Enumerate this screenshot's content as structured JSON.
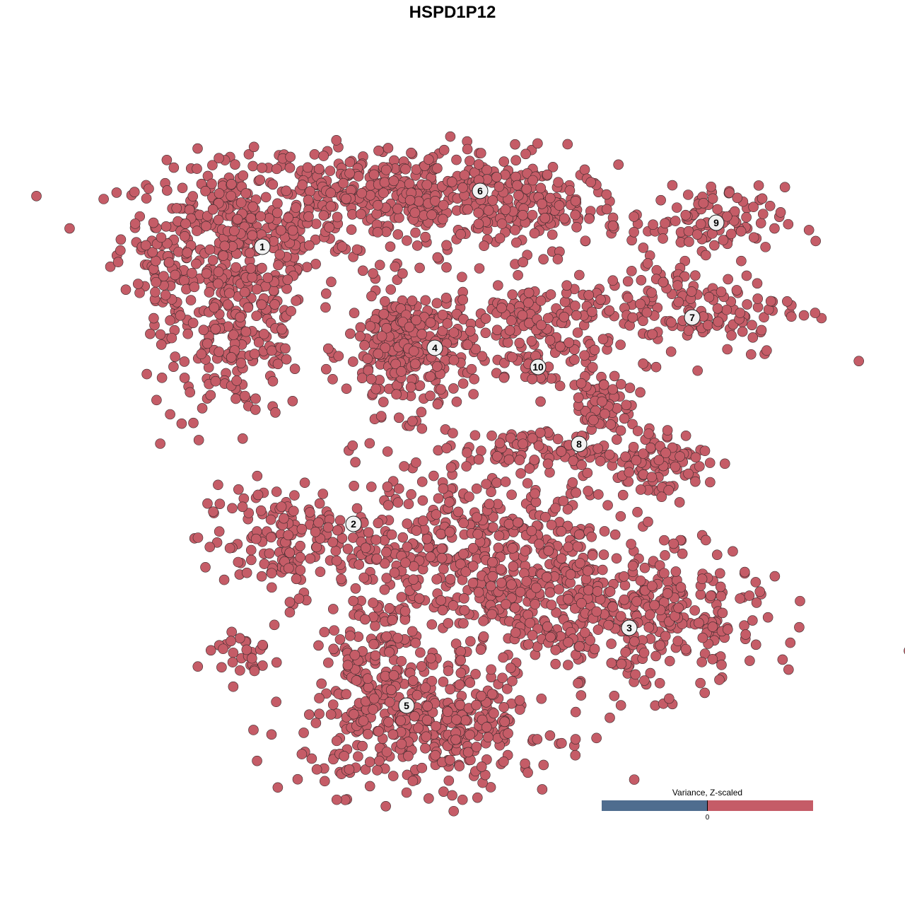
{
  "chart_data": {
    "type": "scatter",
    "title": "HSPD1P12",
    "xlabel": "",
    "ylabel": "",
    "xlim": [
      -45,
      50
    ],
    "ylim": [
      -46,
      47
    ],
    "grid": false,
    "axes_visible": false,
    "point_color": "#c55c67",
    "point_stroke": "#3a2a2c",
    "clusters": [
      {
        "label": "1",
        "label_pos": [
          -26.9,
          29.6
        ],
        "blobs": [
          {
            "center": [
              -31,
              31
            ],
            "spread": [
              8,
              5
            ],
            "n": 320
          },
          {
            "center": [
              -30,
              17
            ],
            "spread": [
              5,
              6
            ],
            "n": 200
          },
          {
            "center": [
              -41,
              24
            ],
            "spread": [
              1.5,
              4
            ],
            "n": 40
          }
        ]
      },
      {
        "label": "6",
        "label_pos": [
          3.9,
          37.5
        ],
        "blobs": [
          {
            "center": [
              -8,
              37
            ],
            "spread": [
              12,
              3.5
            ],
            "n": 420
          },
          {
            "center": [
              12,
              35
            ],
            "spread": [
              6,
              3
            ],
            "n": 120
          }
        ]
      },
      {
        "label": "4",
        "label_pos": [
          -2.5,
          15.3
        ],
        "blobs": [
          {
            "center": [
              -6,
              15
            ],
            "spread": [
              4.5,
              4.5
            ],
            "n": 300
          }
        ]
      },
      {
        "label": "10",
        "label_pos": [
          12.1,
          12.6
        ],
        "blobs": [
          {
            "center": [
              12,
              17
            ],
            "spread": [
              3.5,
              4
            ],
            "n": 80
          },
          {
            "center": [
              8,
              20
            ],
            "spread": [
              4,
              1.5
            ],
            "n": 40
          }
        ]
      },
      {
        "label": "9",
        "label_pos": [
          37.3,
          33
        ],
        "blobs": [
          {
            "center": [
              36,
              33
            ],
            "spread": [
              5.5,
              2.5
            ],
            "n": 100
          }
        ]
      },
      {
        "label": "7",
        "label_pos": [
          33.9,
          19.6
        ],
        "blobs": [
          {
            "center": [
              32,
              21
            ],
            "spread": [
              9,
              3.5
            ],
            "n": 180
          }
        ]
      },
      {
        "label": "8",
        "label_pos": [
          17.9,
          1.7
        ],
        "blobs": [
          {
            "center": [
              21,
              8
            ],
            "spread": [
              2.5,
              5
            ],
            "n": 90
          },
          {
            "center": [
              28,
              -1
            ],
            "spread": [
              4,
              2.5
            ],
            "n": 100
          },
          {
            "center": [
              12,
              1
            ],
            "spread": [
              5,
              1.5
            ],
            "n": 60
          }
        ]
      },
      {
        "label": "2",
        "label_pos": [
          -14,
          -9.6
        ],
        "blobs": [
          {
            "center": [
              -24,
              -12
            ],
            "spread": [
              6,
              4
            ],
            "n": 160
          },
          {
            "center": [
              -30,
              -28
            ],
            "spread": [
              3,
              2
            ],
            "n": 30
          }
        ]
      },
      {
        "label": "",
        "label_pos": null,
        "blobs": [
          {
            "center": [
              4,
              -14
            ],
            "spread": [
              9,
              7
            ],
            "n": 520
          }
        ]
      },
      {
        "label": "5",
        "label_pos": [
          -6.5,
          -35.3
        ],
        "blobs": [
          {
            "center": [
              -3,
              -38
            ],
            "spread": [
              9,
              4.5
            ],
            "n": 400
          },
          {
            "center": [
              -12,
              -29
            ],
            "spread": [
              3,
              5
            ],
            "n": 100
          }
        ]
      },
      {
        "label": "3",
        "label_pos": [
          25,
          -24.3
        ],
        "blobs": [
          {
            "center": [
              26,
              -23
            ],
            "spread": [
              9,
              5
            ],
            "n": 360
          }
        ]
      }
    ],
    "legend": {
      "title": "Variance, Z-scaled",
      "tick_label": "0",
      "low_color": "#4f6d8f",
      "high_color": "#c55c67",
      "placement": "bottom-right"
    }
  }
}
